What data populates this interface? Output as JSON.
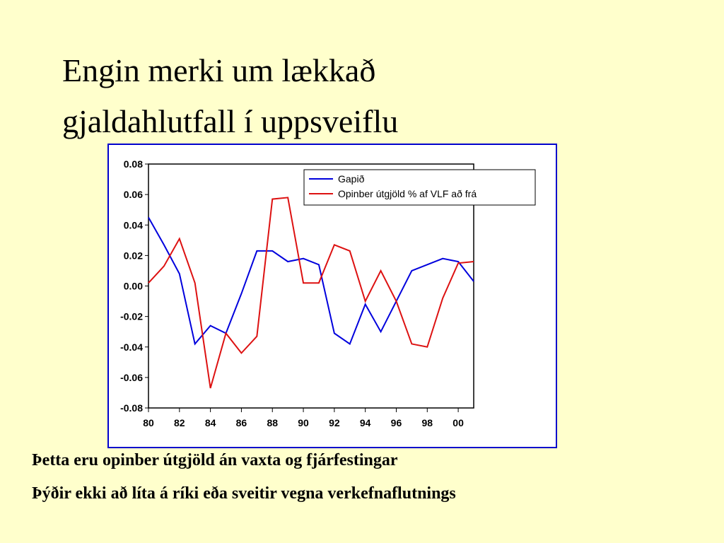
{
  "chart_data": {
    "type": "line",
    "title": [
      "Engin merki um lækkað",
      "gjaldahlutfall í uppsveiflu"
    ],
    "x": [
      1980,
      1981,
      1982,
      1983,
      1984,
      1985,
      1986,
      1987,
      1988,
      1989,
      1990,
      1991,
      1992,
      1993,
      1994,
      1995,
      1996,
      1997,
      1998,
      1999,
      2000,
      2001
    ],
    "xlim": [
      1980,
      2001
    ],
    "xticks": [
      {
        "value": 1980,
        "label": "80"
      },
      {
        "value": 1982,
        "label": "82"
      },
      {
        "value": 1984,
        "label": "84"
      },
      {
        "value": 1986,
        "label": "86"
      },
      {
        "value": 1988,
        "label": "88"
      },
      {
        "value": 1990,
        "label": "90"
      },
      {
        "value": 1992,
        "label": "92"
      },
      {
        "value": 1994,
        "label": "94"
      },
      {
        "value": 1996,
        "label": "96"
      },
      {
        "value": 1998,
        "label": "98"
      },
      {
        "value": 2000,
        "label": "00"
      }
    ],
    "ylim": [
      -0.08,
      0.08
    ],
    "yticks": [
      -0.08,
      -0.06,
      -0.04,
      -0.02,
      {
        "value": 0,
        "label": "0.00"
      },
      0.02,
      0.04,
      0.06,
      0.08
    ],
    "series": [
      {
        "name": "Gapið",
        "color": "#0000dd",
        "values": [
          0.045,
          0.027,
          0.008,
          -0.038,
          -0.026,
          -0.031,
          -0.005,
          0.023,
          0.023,
          0.016,
          0.018,
          0.014,
          -0.031,
          -0.038,
          -0.012,
          -0.03,
          -0.01,
          0.01,
          0.014,
          0.018,
          0.016,
          0.003
        ]
      },
      {
        "name": "Opinber útgjöld %  af VLF að frá",
        "color": "#dd1111",
        "values": [
          0.002,
          0.013,
          0.031,
          0.002,
          -0.067,
          -0.031,
          -0.044,
          -0.033,
          0.057,
          0.058,
          0.002,
          0.002,
          0.027,
          0.023,
          -0.01,
          0.01,
          -0.01,
          -0.038,
          -0.04,
          -0.008,
          0.015,
          0.016
        ]
      }
    ]
  },
  "notes": [
    "Þetta eru opinber útgjöld án vaxta og fjárfestingar",
    "Þýðir ekki að líta á ríki eða sveitir vegna verkefnaflutnings"
  ]
}
